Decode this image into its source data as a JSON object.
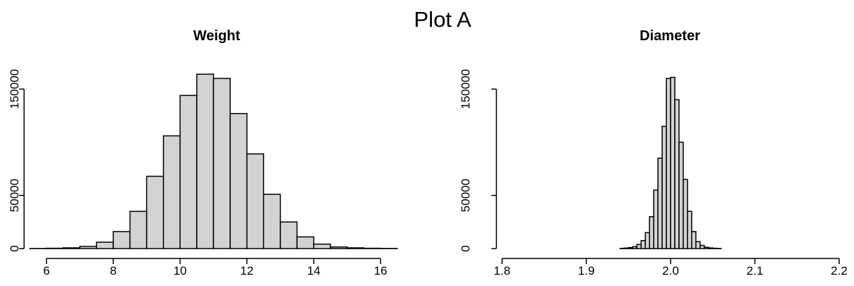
{
  "figure": {
    "title": "Plot A"
  },
  "chart_data": [
    {
      "type": "bar",
      "title": "Weight",
      "xlabel": "",
      "ylabel": "",
      "bin_width": 0.5,
      "bins_start": [
        5.5,
        6.0,
        6.5,
        7.0,
        7.5,
        8.0,
        8.5,
        9.0,
        9.5,
        10.0,
        10.5,
        11.0,
        11.5,
        12.0,
        12.5,
        13.0,
        13.5,
        14.0,
        14.5,
        15.0,
        15.5,
        16.0
      ],
      "values": [
        100,
        300,
        700,
        2000,
        6000,
        16000,
        35000,
        68000,
        106000,
        144000,
        164000,
        160000,
        127000,
        89000,
        51000,
        25000,
        11000,
        4200,
        1500,
        700,
        300,
        150
      ],
      "xlim": [
        5.5,
        16.5
      ],
      "ylim": [
        0,
        170000
      ],
      "x_ticks": [
        6,
        8,
        10,
        12,
        14,
        16
      ],
      "y_ticks": [
        0,
        50000,
        150000
      ],
      "grid": false,
      "legend": "none"
    },
    {
      "type": "bar",
      "title": "Diameter",
      "xlabel": "",
      "ylabel": "",
      "bin_width": 0.005,
      "bins_start": [
        1.94,
        1.945,
        1.95,
        1.955,
        1.96,
        1.965,
        1.97,
        1.975,
        1.98,
        1.985,
        1.99,
        1.995,
        2.0,
        2.005,
        2.01,
        2.015,
        2.02,
        2.025,
        2.03,
        2.035,
        2.04,
        2.045,
        2.05,
        2.055
      ],
      "values": [
        200,
        500,
        900,
        1800,
        3800,
        7500,
        15000,
        30000,
        55000,
        85000,
        115000,
        160000,
        161000,
        140000,
        100000,
        65000,
        35000,
        16000,
        6500,
        3000,
        1200,
        600,
        300,
        150
      ],
      "xlim": [
        1.8,
        2.2
      ],
      "ylim": [
        0,
        170000
      ],
      "x_ticks": [
        1.8,
        1.9,
        2.0,
        2.1,
        2.2
      ],
      "x_tick_labels": [
        "1.8",
        "1.9",
        "2.0",
        "2.1",
        "2.2"
      ],
      "y_ticks": [
        0,
        50000,
        150000
      ],
      "grid": false,
      "legend": "none"
    }
  ]
}
